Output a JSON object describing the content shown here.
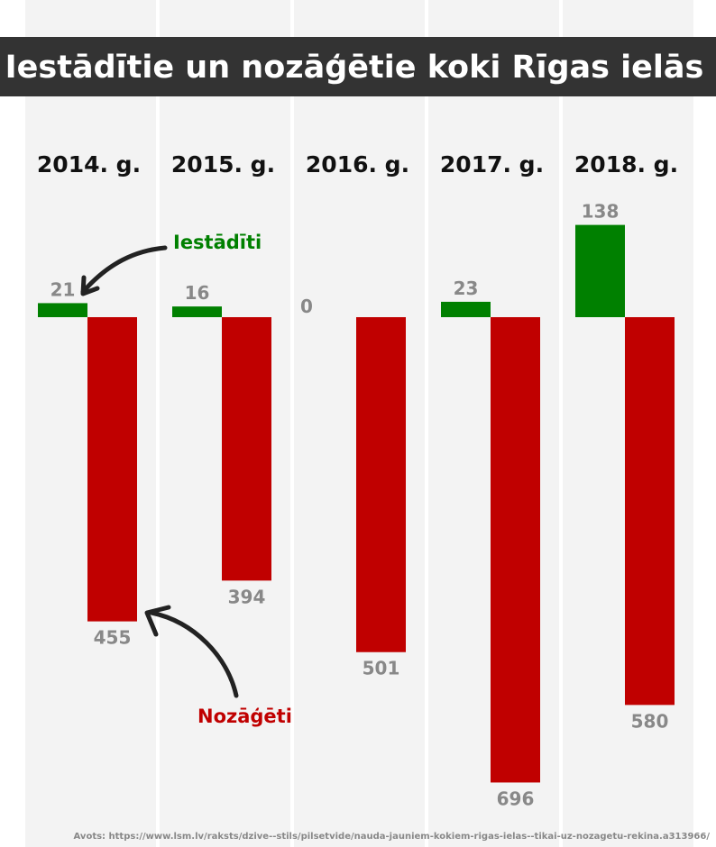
{
  "chart_data": {
    "type": "bar",
    "title": "Iestādītie un nozāģētie koki Rīgas ielās",
    "categories": [
      "2014. g.",
      "2015. g.",
      "2016. g.",
      "2017. g.",
      "2018. g."
    ],
    "series": [
      {
        "name": "Iestādīti",
        "values": [
          21,
          16,
          0,
          23,
          138
        ],
        "color": "#008000",
        "direction": "up"
      },
      {
        "name": "Nozāģēti",
        "values": [
          455,
          394,
          501,
          696,
          580
        ],
        "color": "#c00000",
        "direction": "down"
      }
    ],
    "xlabel": "",
    "ylabel": "",
    "grid": false,
    "legend": "annotations"
  },
  "source": "Avots: https://www.lsm.lv/raksts/dzive--stils/pilsetvide/nauda-jauniem-kokiem-rigas-ielas--tikai-uz-nozagetu-rekina.a313966/",
  "colors": {
    "title_bar": "#333333",
    "column_bg": "#f3f3f3",
    "label_gray": "#888888",
    "annotation_dark": "#222222"
  }
}
